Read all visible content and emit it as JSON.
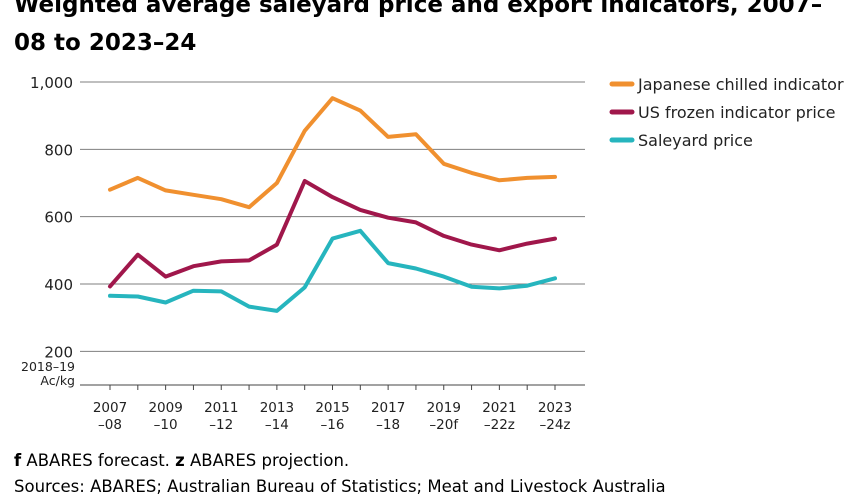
{
  "title": "Weighted average saleyard price and export indicators, 2007–08 to 2023–24",
  "footnote": {
    "f_marker": "f",
    "f_text": " ABARES forecast. ",
    "z_marker": "z",
    "z_text": " ABARES projection."
  },
  "sources": "Sources: ABARES; Australian Bureau of Statistics; Meat and Livestock Australia",
  "chart_data": {
    "type": "line",
    "title": "Weighted average saleyard price and export indicators, 2007–08 to 2023–24",
    "ylabel_lines": [
      "2018–19",
      "Ac/kg"
    ],
    "ylim": [
      100,
      1000
    ],
    "yticks": [
      200,
      400,
      600,
      800,
      1000
    ],
    "ytick_labels": [
      "200",
      "400",
      "600",
      "800",
      "1,000"
    ],
    "grid": true,
    "legend_position": "top-right",
    "x": [
      "2007–08",
      "2008–09",
      "2009–10",
      "2010–11",
      "2011–12",
      "2012–13",
      "2013–14",
      "2014–15",
      "2015–16",
      "2016–17",
      "2017–18",
      "2018–19",
      "2019–20f",
      "2020–21",
      "2021–22z",
      "2022–23z",
      "2023–24z"
    ],
    "xtick_labels": [
      {
        "top": "2007",
        "bottom": "–08"
      },
      {
        "top": "2009",
        "bottom": "–10"
      },
      {
        "top": "2011",
        "bottom": "–12"
      },
      {
        "top": "2013",
        "bottom": "–14"
      },
      {
        "top": "2015",
        "bottom": "–16"
      },
      {
        "top": "2017",
        "bottom": "–18"
      },
      {
        "top": "2019",
        "bottom": "–20f"
      },
      {
        "top": "2021",
        "bottom": "–22z"
      },
      {
        "top": "2023",
        "bottom": "–24z"
      }
    ],
    "series": [
      {
        "name": "Japanese chilled indicator",
        "color": "#F0902F",
        "values": [
          680,
          715,
          678,
          665,
          652,
          628,
          700,
          855,
          952,
          915,
          837,
          845,
          757,
          730,
          708,
          715,
          718
        ]
      },
      {
        "name": "US frozen indicator price",
        "color": "#A0174B",
        "values": [
          393,
          487,
          422,
          453,
          467,
          470,
          517,
          706,
          658,
          620,
          597,
          583,
          543,
          517,
          500,
          520,
          535
        ]
      },
      {
        "name": "Saleyard price",
        "color": "#26B5BE",
        "values": [
          365,
          363,
          345,
          380,
          378,
          333,
          320,
          390,
          535,
          558,
          462,
          446,
          422,
          392,
          387,
          395,
          417
        ]
      }
    ]
  }
}
